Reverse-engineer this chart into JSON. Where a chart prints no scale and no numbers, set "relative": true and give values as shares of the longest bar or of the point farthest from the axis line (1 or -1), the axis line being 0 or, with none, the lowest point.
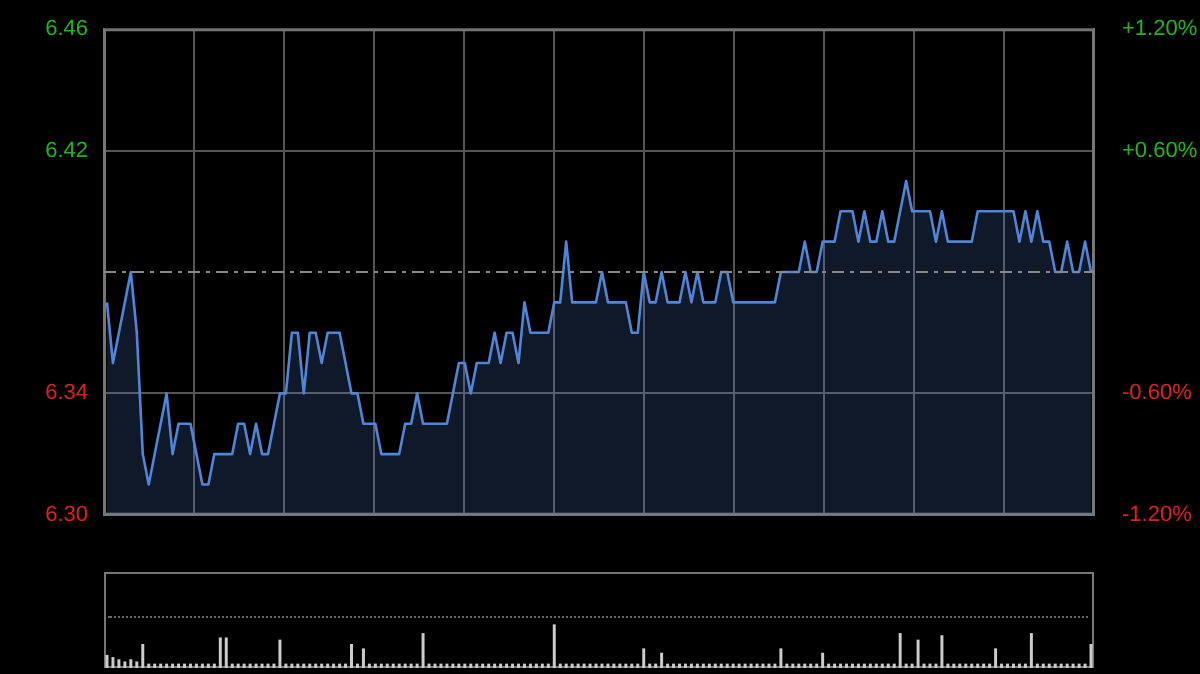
{
  "chart_data": [
    {
      "type": "area",
      "color": "#4f86d9",
      "marker": "none",
      "grid": true,
      "tick_labels": "y",
      "categories": [
        null,
        null,
        null,
        null,
        null,
        null,
        null,
        null,
        null,
        null,
        null,
        null,
        null,
        null,
        null,
        null,
        null,
        null,
        null,
        null,
        null,
        null,
        null,
        null,
        null,
        null,
        null,
        null,
        null,
        null,
        null,
        null,
        null,
        null,
        null,
        null,
        null,
        null,
        null,
        null,
        null,
        null,
        null,
        null,
        null,
        null,
        null,
        null,
        null,
        null,
        null,
        null,
        null,
        null,
        null,
        null,
        null,
        null,
        null,
        null,
        null,
        null,
        null,
        null,
        null,
        null,
        null,
        null,
        null,
        null,
        null,
        null,
        null,
        null,
        null,
        null,
        null,
        null,
        null,
        null,
        null,
        null,
        null,
        null,
        null,
        null,
        null,
        null,
        null,
        null,
        null,
        null,
        null,
        null,
        null,
        null,
        null,
        null,
        null,
        null,
        null,
        null,
        null,
        null,
        null,
        null,
        null,
        null,
        null,
        null,
        null,
        null,
        null,
        null,
        null,
        null,
        null,
        null,
        null,
        null,
        null,
        null,
        null,
        null,
        null,
        null,
        null,
        null,
        null,
        null,
        null,
        null,
        null,
        null,
        null,
        null,
        null,
        null,
        null,
        null,
        null,
        null,
        null,
        null,
        null,
        null,
        null,
        null,
        null,
        null,
        null,
        null,
        null,
        null,
        null,
        null,
        null,
        null,
        null,
        null,
        null,
        null,
        null,
        null,
        null,
        null
      ],
      "values": [
        6.37,
        6.35,
        6.36,
        6.37,
        6.38,
        6.36,
        6.32,
        6.31,
        6.32,
        6.33,
        6.34,
        6.32,
        6.33,
        6.33,
        6.33,
        6.32,
        6.31,
        6.31,
        6.32,
        6.32,
        6.32,
        6.32,
        6.33,
        6.33,
        6.32,
        6.33,
        6.32,
        6.32,
        6.33,
        6.34,
        6.34,
        6.36,
        6.36,
        6.34,
        6.36,
        6.36,
        6.35,
        6.36,
        6.36,
        6.36,
        6.35,
        6.34,
        6.34,
        6.33,
        6.33,
        6.33,
        6.32,
        6.32,
        6.32,
        6.32,
        6.33,
        6.33,
        6.34,
        6.33,
        6.33,
        6.33,
        6.33,
        6.33,
        6.34,
        6.35,
        6.35,
        6.34,
        6.35,
        6.35,
        6.35,
        6.36,
        6.35,
        6.36,
        6.36,
        6.35,
        6.37,
        6.36,
        6.36,
        6.36,
        6.36,
        6.37,
        6.37,
        6.39,
        6.37,
        6.37,
        6.37,
        6.37,
        6.37,
        6.38,
        6.37,
        6.37,
        6.37,
        6.37,
        6.36,
        6.36,
        6.38,
        6.37,
        6.37,
        6.38,
        6.37,
        6.37,
        6.37,
        6.38,
        6.37,
        6.38,
        6.37,
        6.37,
        6.37,
        6.38,
        6.38,
        6.37,
        6.37,
        6.37,
        6.37,
        6.37,
        6.37,
        6.37,
        6.37,
        6.38,
        6.38,
        6.38,
        6.38,
        6.39,
        6.38,
        6.38,
        6.39,
        6.39,
        6.39,
        6.4,
        6.4,
        6.4,
        6.39,
        6.4,
        6.39,
        6.39,
        6.4,
        6.39,
        6.39,
        6.4,
        6.41,
        6.4,
        6.4,
        6.4,
        6.4,
        6.39,
        6.4,
        6.39,
        6.39,
        6.39,
        6.39,
        6.39,
        6.4,
        6.4,
        6.4,
        6.4,
        6.4,
        6.4,
        6.4,
        6.39,
        6.4,
        6.39,
        6.4,
        6.39,
        6.39,
        6.38,
        6.38,
        6.39,
        6.38,
        6.38,
        6.39,
        6.38
      ],
      "ylim": [
        6.3,
        6.46
      ],
      "yticks": [
        {
          "value": 6.3,
          "label": "6.30"
        },
        6.34,
        6.42,
        6.46
      ],
      "y2lim": [
        -1.2,
        1.2
      ],
      "y2ticks": [
        {
          "value": -1.2,
          "label": "-1.20%"
        },
        {
          "value": -0.6,
          "label": "-0.60%"
        },
        {
          "value": 0.6,
          "label": "+0.60%"
        },
        {
          "value": 1.2,
          "label": "+1.20%"
        }
      ],
      "ref_lines": [
        {
          "axis": "y",
          "value": 6.38,
          "color": "#888888",
          "line_style": "dashed"
        }
      ]
    },
    {
      "type": "bar",
      "relative": true,
      "color": "#cccccc",
      "tick_labels": false,
      "categories": [
        null,
        null,
        null,
        null,
        null,
        null,
        null,
        null,
        null,
        null,
        null,
        null,
        null,
        null,
        null,
        null,
        null,
        null,
        null,
        null,
        null,
        null,
        null,
        null,
        null,
        null,
        null,
        null,
        null,
        null,
        null,
        null,
        null,
        null,
        null,
        null,
        null,
        null,
        null,
        null,
        null,
        null,
        null,
        null,
        null,
        null,
        null,
        null,
        null,
        null,
        null,
        null,
        null,
        null,
        null,
        null,
        null,
        null,
        null,
        null,
        null,
        null,
        null,
        null,
        null,
        null,
        null,
        null,
        null,
        null,
        null,
        null,
        null,
        null,
        null,
        null,
        null,
        null,
        null,
        null,
        null,
        null,
        null,
        null,
        null,
        null,
        null,
        null,
        null,
        null,
        null,
        null,
        null,
        null,
        null,
        null,
        null,
        null,
        null,
        null,
        null,
        null,
        null,
        null,
        null,
        null,
        null,
        null,
        null,
        null,
        null,
        null,
        null,
        null,
        null,
        null,
        null,
        null,
        null,
        null,
        null,
        null,
        null,
        null,
        null,
        null,
        null,
        null,
        null,
        null,
        null,
        null,
        null,
        null,
        null,
        null,
        null,
        null,
        null,
        null,
        null,
        null,
        null,
        null,
        null,
        null,
        null,
        null,
        null,
        null,
        null,
        null,
        null,
        null,
        null,
        null,
        null,
        null,
        null,
        null,
        null,
        null,
        null,
        null,
        null,
        null
      ],
      "values": [
        0.3,
        0.25,
        0.2,
        0.15,
        0.2,
        0.15,
        0.55,
        0.1,
        0.1,
        0.1,
        0.1,
        0.1,
        0.1,
        0.1,
        0.1,
        0.1,
        0.1,
        0.1,
        0.1,
        0.7,
        0.7,
        0.1,
        0.1,
        0.1,
        0.1,
        0.1,
        0.1,
        0.1,
        0.1,
        0.65,
        0.1,
        0.1,
        0.1,
        0.1,
        0.1,
        0.1,
        0.1,
        0.1,
        0.1,
        0.1,
        0.1,
        0.55,
        0.1,
        0.45,
        0.1,
        0.1,
        0.1,
        0.1,
        0.1,
        0.1,
        0.1,
        0.1,
        0.1,
        0.8,
        0.1,
        0.1,
        0.1,
        0.1,
        0.1,
        0.1,
        0.1,
        0.1,
        0.1,
        0.1,
        0.1,
        0.1,
        0.1,
        0.1,
        0.1,
        0.1,
        0.1,
        0.1,
        0.1,
        0.1,
        0.1,
        1,
        0.1,
        0.1,
        0.1,
        0.1,
        0.1,
        0.1,
        0.1,
        0.1,
        0.1,
        0.1,
        0.1,
        0.1,
        0.1,
        0.1,
        0.45,
        0.1,
        0.1,
        0.35,
        0.1,
        0.1,
        0.1,
        0.1,
        0.1,
        0.1,
        0.1,
        0.1,
        0.1,
        0.1,
        0.1,
        0.1,
        0.1,
        0.1,
        0.1,
        0.1,
        0.1,
        0.1,
        0.1,
        0.45,
        0.1,
        0.1,
        0.1,
        0.1,
        0.1,
        0.1,
        0.35,
        0.1,
        0.1,
        0.1,
        0.1,
        0.1,
        0.1,
        0.1,
        0.1,
        0.1,
        0.1,
        0.1,
        0.1,
        0.8,
        0.1,
        0.1,
        0.65,
        0.1,
        0.1,
        0.1,
        0.75,
        0.1,
        0.1,
        0.1,
        0.1,
        0.1,
        0.1,
        0.1,
        0.1,
        0.45,
        0.1,
        0.1,
        0.1,
        0.1,
        0.1,
        0.8,
        0.1,
        0.1,
        0.1,
        0.1,
        0.1,
        0.1,
        0.1,
        0.1,
        0.1,
        0.55
      ]
    }
  ]
}
